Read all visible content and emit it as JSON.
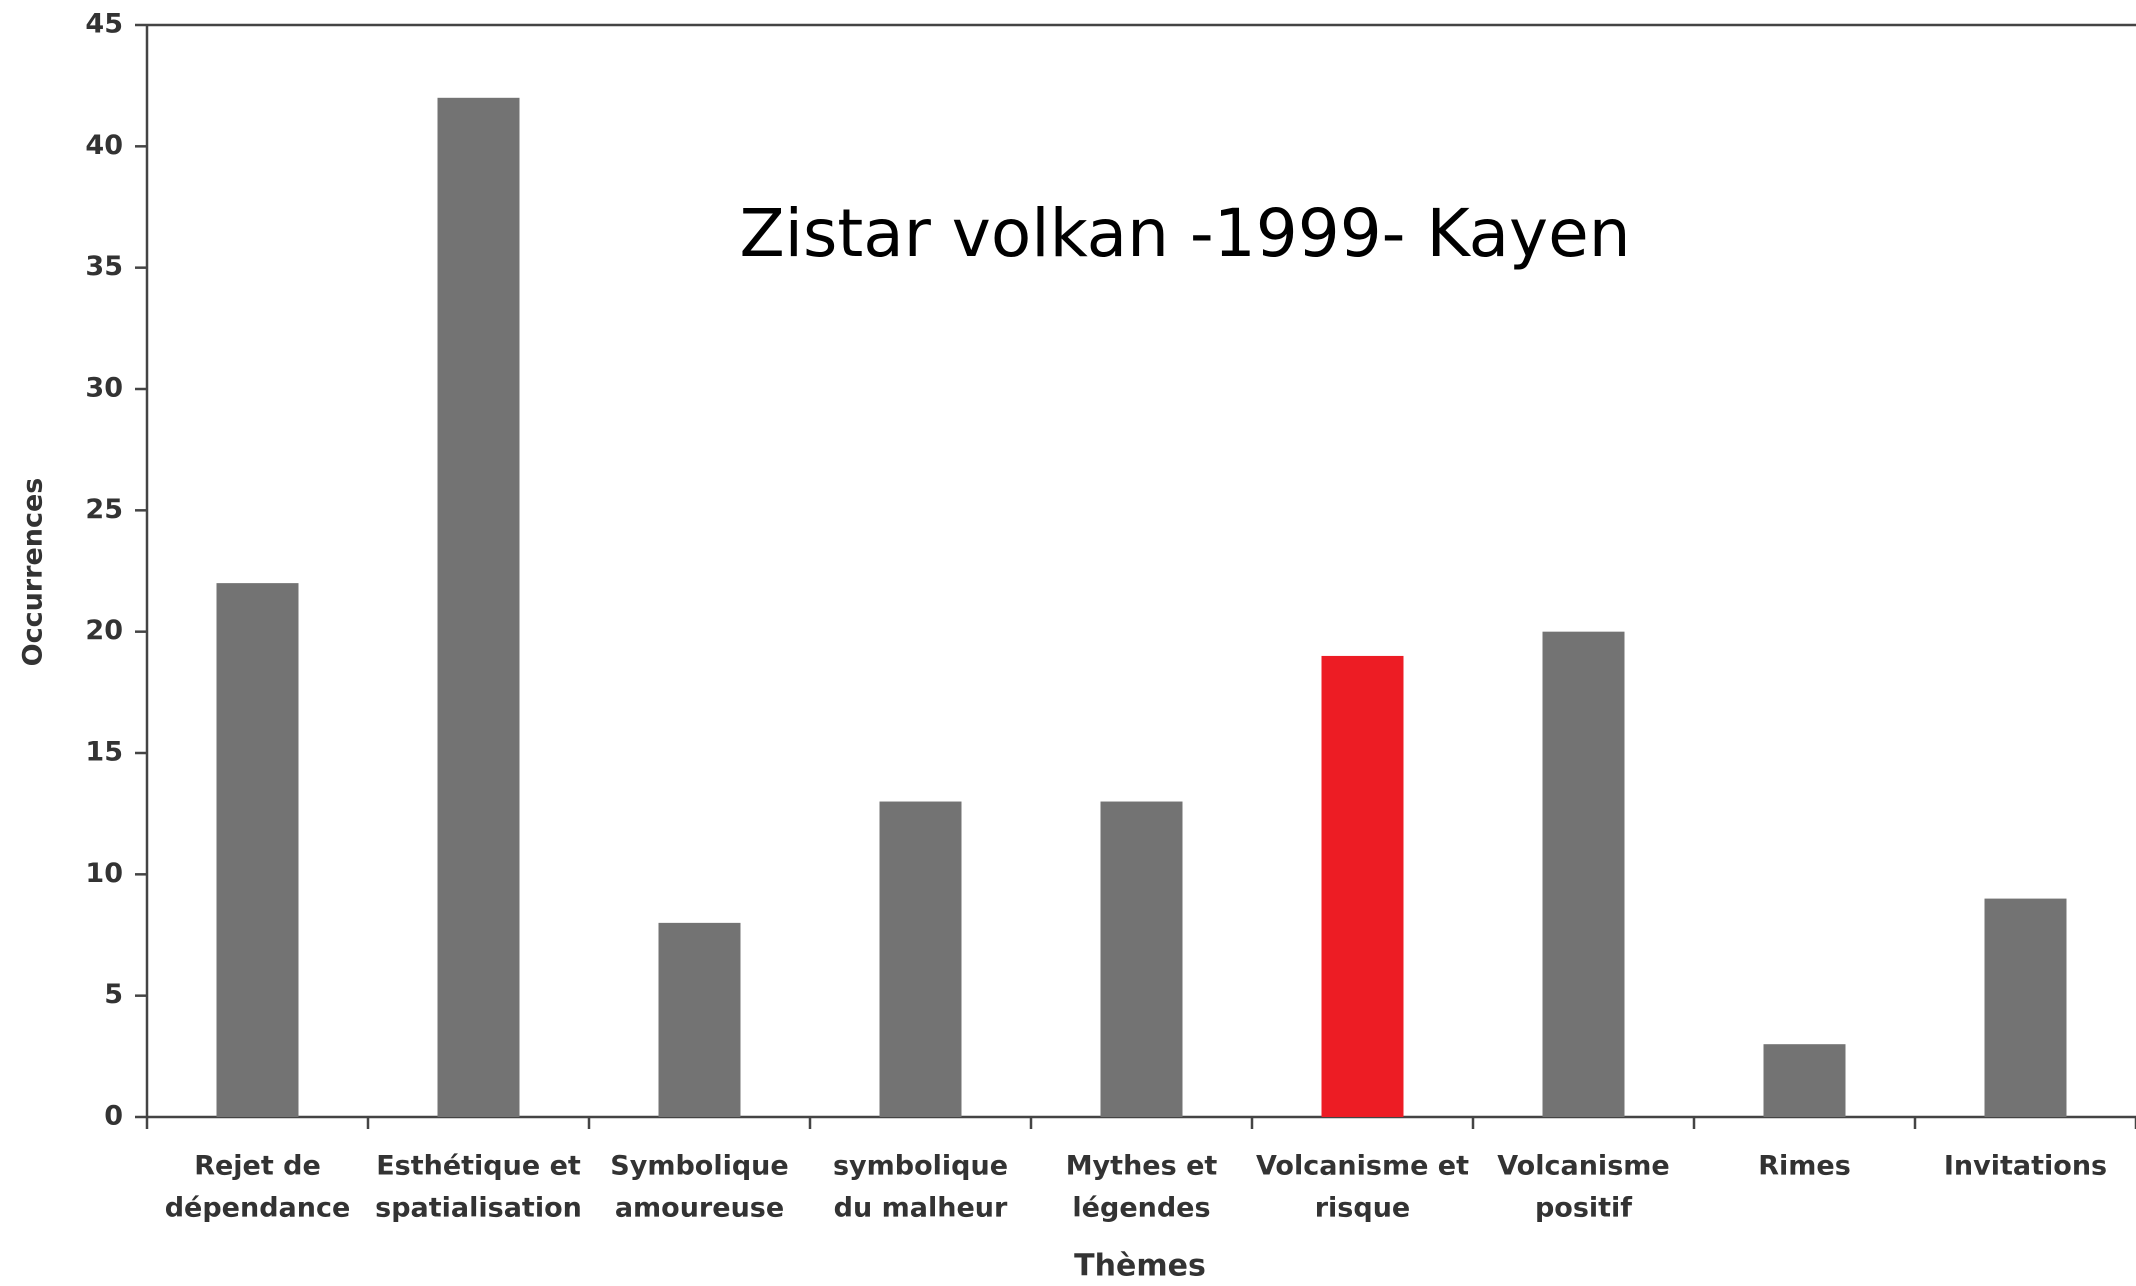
{
  "chart_data": {
    "type": "bar",
    "annotation": "Zistar volkan -1999- Kayen",
    "x_label": "Thèmes",
    "y_label": "Occurrences",
    "categories": [
      [
        "Rejet de",
        "dépendance"
      ],
      [
        "Esthétique et",
        "spatialisation"
      ],
      [
        "Symbolique",
        "amoureuse"
      ],
      [
        "symbolique",
        "du malheur"
      ],
      [
        "Mythes et",
        "légendes"
      ],
      [
        "Volcanisme et",
        "risque"
      ],
      [
        "Volcanisme",
        "positif"
      ],
      [
        "Rimes"
      ],
      [
        "Invitations"
      ]
    ],
    "values": [
      22,
      42,
      8,
      13,
      13,
      19,
      20,
      3,
      9
    ],
    "colors": [
      "#737373",
      "#737373",
      "#737373",
      "#737373",
      "#737373",
      "#ed1c24",
      "#737373",
      "#737373",
      "#737373"
    ],
    "ylim": [
      0,
      45
    ],
    "yticks": [
      0,
      5,
      10,
      15,
      20,
      25,
      30,
      35,
      40,
      45
    ],
    "grid": false
  }
}
